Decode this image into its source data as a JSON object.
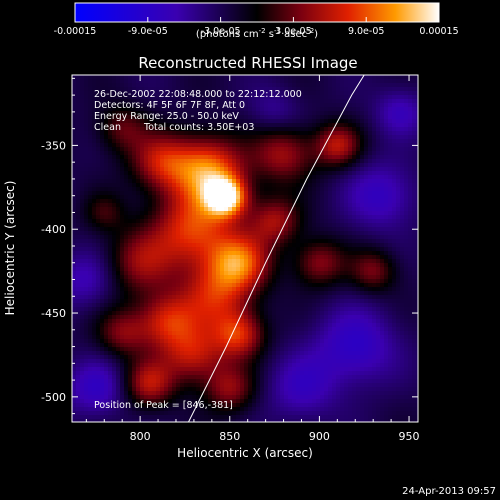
{
  "chart_data": {
    "type": "heatmap",
    "title": "Reconstructed RHESSI Image",
    "xlabel": "Heliocentric X (arcsec)",
    "ylabel": "Heliocentric Y (arcsec)",
    "xlim": [
      762,
      955
    ],
    "ylim": [
      -515,
      -308
    ],
    "xticks": [
      800,
      850,
      900,
      950
    ],
    "xtick_labels": [
      "800",
      "850",
      "900",
      "950"
    ],
    "yticks": [
      -350,
      -400,
      -450,
      -500
    ],
    "ytick_labels": [
      "-350",
      "-400",
      "-450",
      "-500"
    ],
    "colorbar": {
      "min": -0.00015,
      "max": 0.00015,
      "tick_labels": [
        "-0.00015",
        "-9.0e-05",
        "-3.0e-05",
        "3.0e-05",
        "9.0e-05",
        "0.00015"
      ],
      "unit_label": "(photons cm",
      "unit_exp1": "-2",
      "unit_mid": " s",
      "unit_exp2": "-1",
      "unit_end": " asec",
      "unit_exp3": "-2",
      "unit_close": ")"
    },
    "annotations": {
      "time_range": "26-Dec-2002 22:08:48.000 to 22:12:12.000",
      "detectors": "Detectors: 4F 5F 6F 7F 8F, Att 0",
      "energy": "Energy Range: 25.0 - 50.0 keV",
      "clean": "Clean",
      "counts": "Total counts: 3.50E+03",
      "peak": "Position of Peak = [846,-381]"
    },
    "limb_curve_data": [
      [
        827,
        -515
      ],
      [
        848,
        -470
      ],
      [
        870,
        -420
      ],
      [
        893,
        -370
      ],
      [
        918,
        -320
      ],
      [
        925,
        -308
      ]
    ],
    "blobs": [
      {
        "x": 848,
        "y": -381,
        "amp": 1.0,
        "r": 8
      },
      {
        "x": 838,
        "y": -365,
        "amp": 0.85,
        "r": 14
      },
      {
        "x": 830,
        "y": -400,
        "amp": 0.7,
        "r": 16
      },
      {
        "x": 855,
        "y": -420,
        "amp": 0.75,
        "r": 12
      },
      {
        "x": 842,
        "y": -440,
        "amp": 0.55,
        "r": 14
      },
      {
        "x": 812,
        "y": -360,
        "amp": 0.55,
        "r": 12
      },
      {
        "x": 800,
        "y": -420,
        "amp": 0.45,
        "r": 14
      },
      {
        "x": 815,
        "y": -455,
        "amp": 0.6,
        "r": 12
      },
      {
        "x": 790,
        "y": -462,
        "amp": 0.4,
        "r": 10
      },
      {
        "x": 830,
        "y": -475,
        "amp": 0.55,
        "r": 12
      },
      {
        "x": 855,
        "y": -463,
        "amp": 0.62,
        "r": 10
      },
      {
        "x": 805,
        "y": -492,
        "amp": 0.55,
        "r": 10
      },
      {
        "x": 850,
        "y": -495,
        "amp": 0.45,
        "r": 10
      },
      {
        "x": 880,
        "y": -355,
        "amp": 0.5,
        "r": 12
      },
      {
        "x": 910,
        "y": -350,
        "amp": 0.55,
        "r": 9
      },
      {
        "x": 900,
        "y": -420,
        "amp": 0.45,
        "r": 10
      },
      {
        "x": 930,
        "y": -425,
        "amp": 0.4,
        "r": 9
      },
      {
        "x": 875,
        "y": -395,
        "amp": 0.5,
        "r": 10
      },
      {
        "x": 790,
        "y": -340,
        "amp": 0.35,
        "r": 10
      },
      {
        "x": 780,
        "y": -390,
        "amp": 0.25,
        "r": 8
      },
      {
        "x": 935,
        "y": -380,
        "amp": -0.35,
        "r": 14
      },
      {
        "x": 920,
        "y": -470,
        "amp": -0.4,
        "r": 16
      },
      {
        "x": 890,
        "y": -495,
        "amp": -0.3,
        "r": 14
      },
      {
        "x": 775,
        "y": -495,
        "amp": -0.35,
        "r": 12
      },
      {
        "x": 770,
        "y": -430,
        "amp": -0.3,
        "r": 12
      },
      {
        "x": 875,
        "y": -330,
        "amp": -0.2,
        "r": 10
      },
      {
        "x": 945,
        "y": -330,
        "amp": -0.3,
        "r": 10
      }
    ]
  },
  "footer": {
    "date": "24-Apr-2013 09:57"
  }
}
